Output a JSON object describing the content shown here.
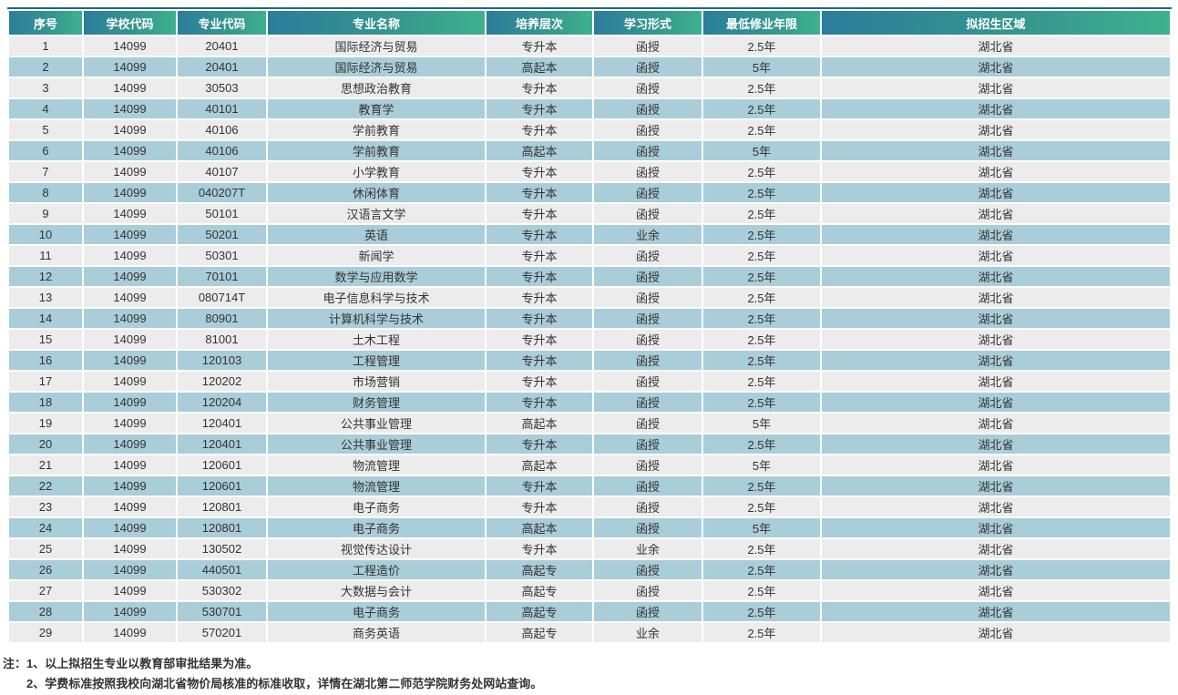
{
  "table": {
    "columns": [
      {
        "key": "index",
        "label": "序号"
      },
      {
        "key": "school_code",
        "label": "学校代码"
      },
      {
        "key": "major_code",
        "label": "专业代码"
      },
      {
        "key": "major_name",
        "label": "专业名称"
      },
      {
        "key": "level",
        "label": "培养层次"
      },
      {
        "key": "study_form",
        "label": "学习形式"
      },
      {
        "key": "min_years",
        "label": "最低修业年限"
      },
      {
        "key": "region",
        "label": "拟招生区域"
      }
    ],
    "rows": [
      {
        "index": "1",
        "school_code": "14099",
        "major_code": "20401",
        "major_name": "国际经济与贸易",
        "level": "专升本",
        "study_form": "函授",
        "min_years": "2.5年",
        "region": "湖北省"
      },
      {
        "index": "2",
        "school_code": "14099",
        "major_code": "20401",
        "major_name": "国际经济与贸易",
        "level": "高起本",
        "study_form": "函授",
        "min_years": "5年",
        "region": "湖北省"
      },
      {
        "index": "3",
        "school_code": "14099",
        "major_code": "30503",
        "major_name": "思想政治教育",
        "level": "专升本",
        "study_form": "函授",
        "min_years": "2.5年",
        "region": "湖北省"
      },
      {
        "index": "4",
        "school_code": "14099",
        "major_code": "40101",
        "major_name": "教育学",
        "level": "专升本",
        "study_form": "函授",
        "min_years": "2.5年",
        "region": "湖北省"
      },
      {
        "index": "5",
        "school_code": "14099",
        "major_code": "40106",
        "major_name": "学前教育",
        "level": "专升本",
        "study_form": "函授",
        "min_years": "2.5年",
        "region": "湖北省"
      },
      {
        "index": "6",
        "school_code": "14099",
        "major_code": "40106",
        "major_name": "学前教育",
        "level": "高起本",
        "study_form": "函授",
        "min_years": "5年",
        "region": "湖北省"
      },
      {
        "index": "7",
        "school_code": "14099",
        "major_code": "40107",
        "major_name": "小学教育",
        "level": "专升本",
        "study_form": "函授",
        "min_years": "2.5年",
        "region": "湖北省"
      },
      {
        "index": "8",
        "school_code": "14099",
        "major_code": "040207T",
        "major_name": "休闲体育",
        "level": "专升本",
        "study_form": "函授",
        "min_years": "2.5年",
        "region": "湖北省"
      },
      {
        "index": "9",
        "school_code": "14099",
        "major_code": "50101",
        "major_name": "汉语言文学",
        "level": "专升本",
        "study_form": "函授",
        "min_years": "2.5年",
        "region": "湖北省"
      },
      {
        "index": "10",
        "school_code": "14099",
        "major_code": "50201",
        "major_name": "英语",
        "level": "专升本",
        "study_form": "业余",
        "min_years": "2.5年",
        "region": "湖北省"
      },
      {
        "index": "11",
        "school_code": "14099",
        "major_code": "50301",
        "major_name": "新闻学",
        "level": "专升本",
        "study_form": "函授",
        "min_years": "2.5年",
        "region": "湖北省"
      },
      {
        "index": "12",
        "school_code": "14099",
        "major_code": "70101",
        "major_name": "数学与应用数学",
        "level": "专升本",
        "study_form": "函授",
        "min_years": "2.5年",
        "region": "湖北省"
      },
      {
        "index": "13",
        "school_code": "14099",
        "major_code": "080714T",
        "major_name": "电子信息科学与技术",
        "level": "专升本",
        "study_form": "函授",
        "min_years": "2.5年",
        "region": "湖北省"
      },
      {
        "index": "14",
        "school_code": "14099",
        "major_code": "80901",
        "major_name": "计算机科学与技术",
        "level": "专升本",
        "study_form": "函授",
        "min_years": "2.5年",
        "region": "湖北省"
      },
      {
        "index": "15",
        "school_code": "14099",
        "major_code": "81001",
        "major_name": "土木工程",
        "level": "专升本",
        "study_form": "函授",
        "min_years": "2.5年",
        "region": "湖北省"
      },
      {
        "index": "16",
        "school_code": "14099",
        "major_code": "120103",
        "major_name": "工程管理",
        "level": "专升本",
        "study_form": "函授",
        "min_years": "2.5年",
        "region": "湖北省"
      },
      {
        "index": "17",
        "school_code": "14099",
        "major_code": "120202",
        "major_name": "市场营销",
        "level": "专升本",
        "study_form": "函授",
        "min_years": "2.5年",
        "region": "湖北省"
      },
      {
        "index": "18",
        "school_code": "14099",
        "major_code": "120204",
        "major_name": "财务管理",
        "level": "专升本",
        "study_form": "函授",
        "min_years": "2.5年",
        "region": "湖北省"
      },
      {
        "index": "19",
        "school_code": "14099",
        "major_code": "120401",
        "major_name": "公共事业管理",
        "level": "高起本",
        "study_form": "函授",
        "min_years": "5年",
        "region": "湖北省"
      },
      {
        "index": "20",
        "school_code": "14099",
        "major_code": "120401",
        "major_name": "公共事业管理",
        "level": "专升本",
        "study_form": "函授",
        "min_years": "2.5年",
        "region": "湖北省"
      },
      {
        "index": "21",
        "school_code": "14099",
        "major_code": "120601",
        "major_name": "物流管理",
        "level": "高起本",
        "study_form": "函授",
        "min_years": "5年",
        "region": "湖北省"
      },
      {
        "index": "22",
        "school_code": "14099",
        "major_code": "120601",
        "major_name": "物流管理",
        "level": "专升本",
        "study_form": "函授",
        "min_years": "2.5年",
        "region": "湖北省"
      },
      {
        "index": "23",
        "school_code": "14099",
        "major_code": "120801",
        "major_name": "电子商务",
        "level": "专升本",
        "study_form": "函授",
        "min_years": "2.5年",
        "region": "湖北省"
      },
      {
        "index": "24",
        "school_code": "14099",
        "major_code": "120801",
        "major_name": "电子商务",
        "level": "高起本",
        "study_form": "函授",
        "min_years": "5年",
        "region": "湖北省"
      },
      {
        "index": "25",
        "school_code": "14099",
        "major_code": "130502",
        "major_name": "视觉传达设计",
        "level": "专升本",
        "study_form": "业余",
        "min_years": "2.5年",
        "region": "湖北省"
      },
      {
        "index": "26",
        "school_code": "14099",
        "major_code": "440501",
        "major_name": "工程造价",
        "level": "高起专",
        "study_form": "函授",
        "min_years": "2.5年",
        "region": "湖北省"
      },
      {
        "index": "27",
        "school_code": "14099",
        "major_code": "530302",
        "major_name": "大数据与会计",
        "level": "高起专",
        "study_form": "函授",
        "min_years": "2.5年",
        "region": "湖北省"
      },
      {
        "index": "28",
        "school_code": "14099",
        "major_code": "530701",
        "major_name": "电子商务",
        "level": "高起专",
        "study_form": "函授",
        "min_years": "2.5年",
        "region": "湖北省"
      },
      {
        "index": "29",
        "school_code": "14099",
        "major_code": "570201",
        "major_name": "商务英语",
        "level": "高起专",
        "study_form": "业余",
        "min_years": "2.5年",
        "region": "湖北省"
      }
    ]
  },
  "notes": {
    "line1": "注：1、以上拟招生专业以教育部审批结果为准。",
    "line2": "2、学费标准按照我校向湖北省物价局核准的标准收取，详情在湖北第二师范学院财务处网站查询。"
  },
  "colors": {
    "header_gradient_start": "#2c7d9c",
    "header_gradient_end": "#3eb18e",
    "header_top_border": "#1c688a",
    "row_gray": "#ececec",
    "row_blue": "#a9cdd9",
    "header_text": "#ffffff",
    "body_text": "#333333"
  }
}
